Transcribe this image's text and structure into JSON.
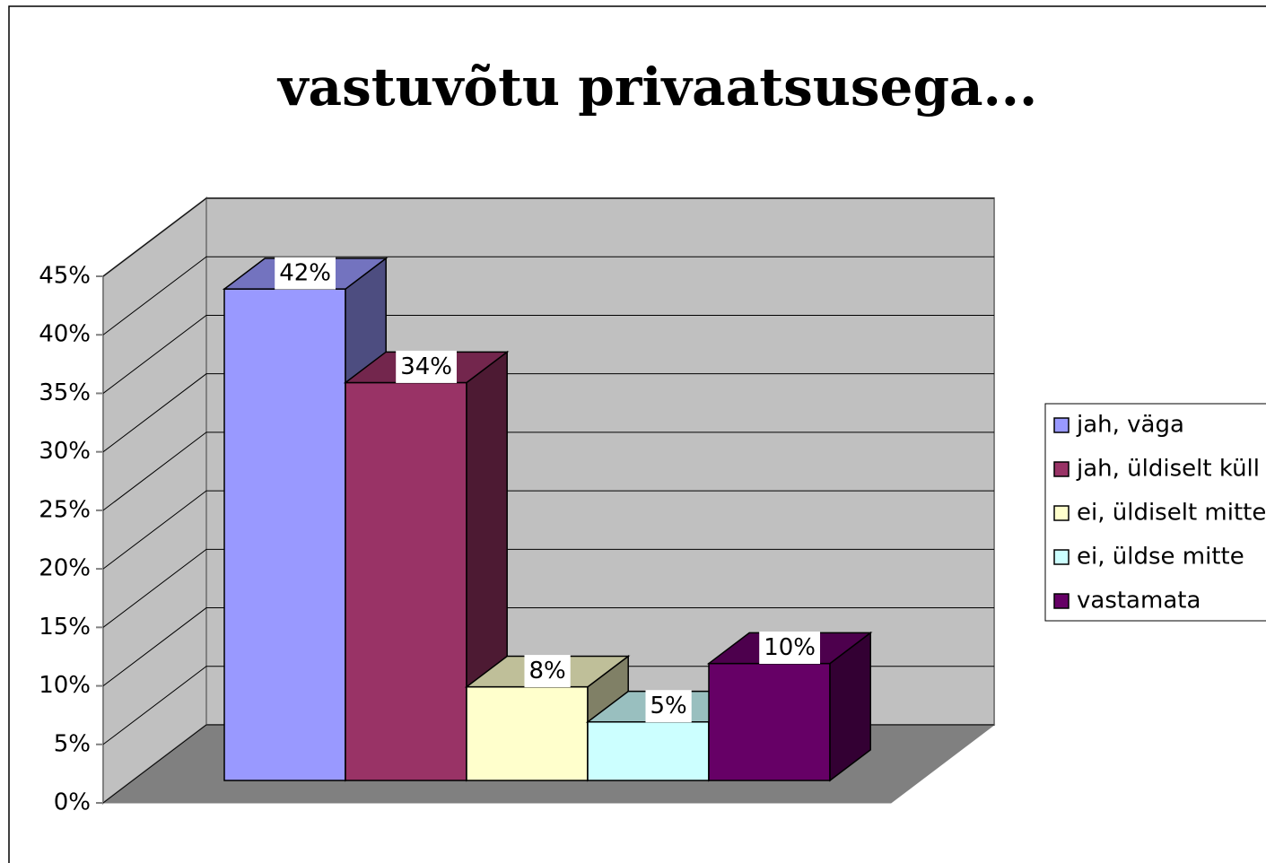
{
  "chart_data": {
    "type": "bar3d",
    "title": "vastuvõtu privaatsusega...",
    "series": [
      {
        "name": "jah, väga",
        "color": "#9999ff",
        "values": [
          42
        ],
        "value_labels": [
          "42%"
        ]
      },
      {
        "name": "jah, üldiselt küll",
        "color": "#993366",
        "values": [
          34
        ],
        "value_labels": [
          "34%"
        ]
      },
      {
        "name": "ei, üldiselt mitte",
        "color": "#ffffcc",
        "values": [
          8
        ],
        "value_labels": [
          "8%"
        ]
      },
      {
        "name": "ei, üldse mitte",
        "color": "#ccffff",
        "values": [
          5
        ],
        "value_labels": [
          "5%"
        ]
      },
      {
        "name": "vastamata",
        "color": "#660066",
        "values": [
          10
        ],
        "value_labels": [
          "10%"
        ]
      }
    ],
    "ylim": [
      0,
      45
    ],
    "yticks": [
      {
        "value": 0,
        "label": "0%"
      },
      {
        "value": 5,
        "label": "5%"
      },
      {
        "value": 10,
        "label": "10%"
      },
      {
        "value": 15,
        "label": "15%"
      },
      {
        "value": 20,
        "label": "20%"
      },
      {
        "value": 25,
        "label": "25%"
      },
      {
        "value": 30,
        "label": "30%"
      },
      {
        "value": 35,
        "label": "35%"
      },
      {
        "value": 40,
        "label": "40%"
      },
      {
        "value": 45,
        "label": "45%"
      }
    ],
    "grid": true,
    "legend": "right"
  }
}
